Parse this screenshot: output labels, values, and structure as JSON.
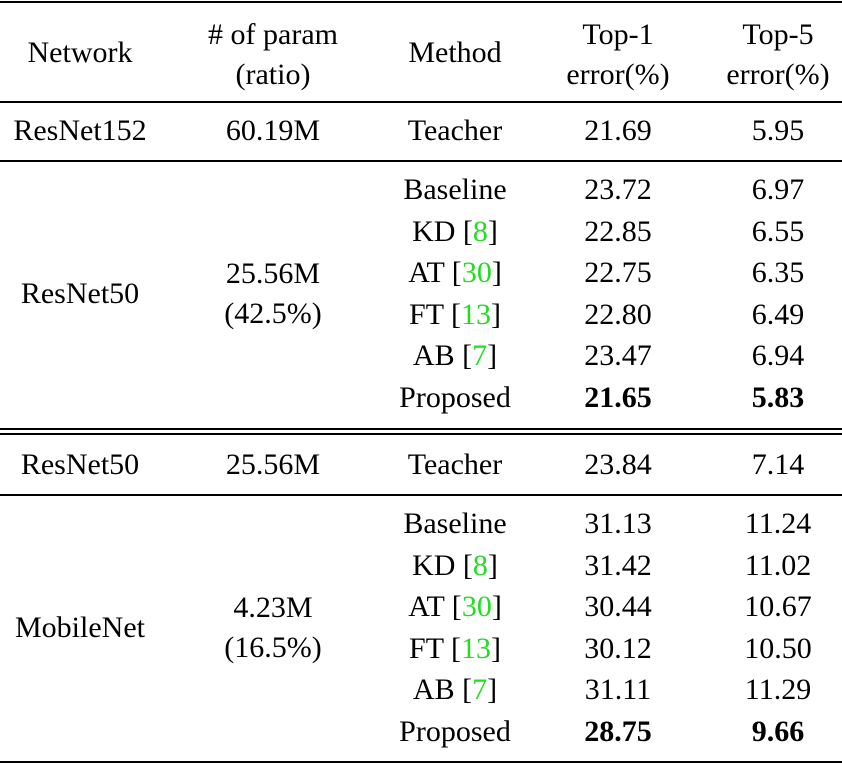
{
  "table": {
    "cite_color": "#22dd22",
    "header": [
      [
        "Network"
      ],
      [
        "# of param",
        "(ratio)"
      ],
      [
        "Method"
      ],
      [
        "Top-1",
        "error(%)"
      ],
      [
        "Top-5",
        "error(%)"
      ]
    ],
    "groups": [
      {
        "network": "ResNet152",
        "params": [
          "60.19M"
        ],
        "rows": [
          {
            "method": [
              "Teacher"
            ],
            "top1": "21.69",
            "top5": "5.95",
            "best": false
          }
        ]
      },
      {
        "network": "ResNet50",
        "params": [
          "25.56M",
          "(42.5%)"
        ],
        "rows": [
          {
            "method": [
              "Baseline"
            ],
            "top1": "23.72",
            "top5": "6.97",
            "best": false
          },
          {
            "method": [
              "KD [",
              "8",
              "]"
            ],
            "top1": "22.85",
            "top5": "6.55",
            "best": false
          },
          {
            "method": [
              "AT [",
              "30",
              "]"
            ],
            "top1": "22.75",
            "top5": "6.35",
            "best": false
          },
          {
            "method": [
              "FT [",
              "13",
              "]"
            ],
            "top1": "22.80",
            "top5": "6.49",
            "best": false
          },
          {
            "method": [
              "AB [",
              "7",
              "]"
            ],
            "top1": "23.47",
            "top5": "6.94",
            "best": false
          },
          {
            "method": [
              "Proposed"
            ],
            "top1": "21.65",
            "top5": "5.83",
            "best": true
          }
        ]
      },
      {
        "network": "ResNet50",
        "params": [
          "25.56M"
        ],
        "rows": [
          {
            "method": [
              "Teacher"
            ],
            "top1": "23.84",
            "top5": "7.14",
            "best": false
          }
        ]
      },
      {
        "network": "MobileNet",
        "params": [
          "4.23M",
          "(16.5%)"
        ],
        "rows": [
          {
            "method": [
              "Baseline"
            ],
            "top1": "31.13",
            "top5": "11.24",
            "best": false
          },
          {
            "method": [
              "KD [",
              "8",
              "]"
            ],
            "top1": "31.42",
            "top5": "11.02",
            "best": false
          },
          {
            "method": [
              "AT [",
              "30",
              "]"
            ],
            "top1": "30.44",
            "top5": "10.67",
            "best": false
          },
          {
            "method": [
              "FT [",
              "13",
              "]"
            ],
            "top1": "30.12",
            "top5": "10.50",
            "best": false
          },
          {
            "method": [
              "AB [",
              "7",
              "]"
            ],
            "top1": "31.11",
            "top5": "11.29",
            "best": false
          },
          {
            "method": [
              "Proposed"
            ],
            "top1": "28.75",
            "top5": "9.66",
            "best": true
          }
        ]
      }
    ]
  }
}
